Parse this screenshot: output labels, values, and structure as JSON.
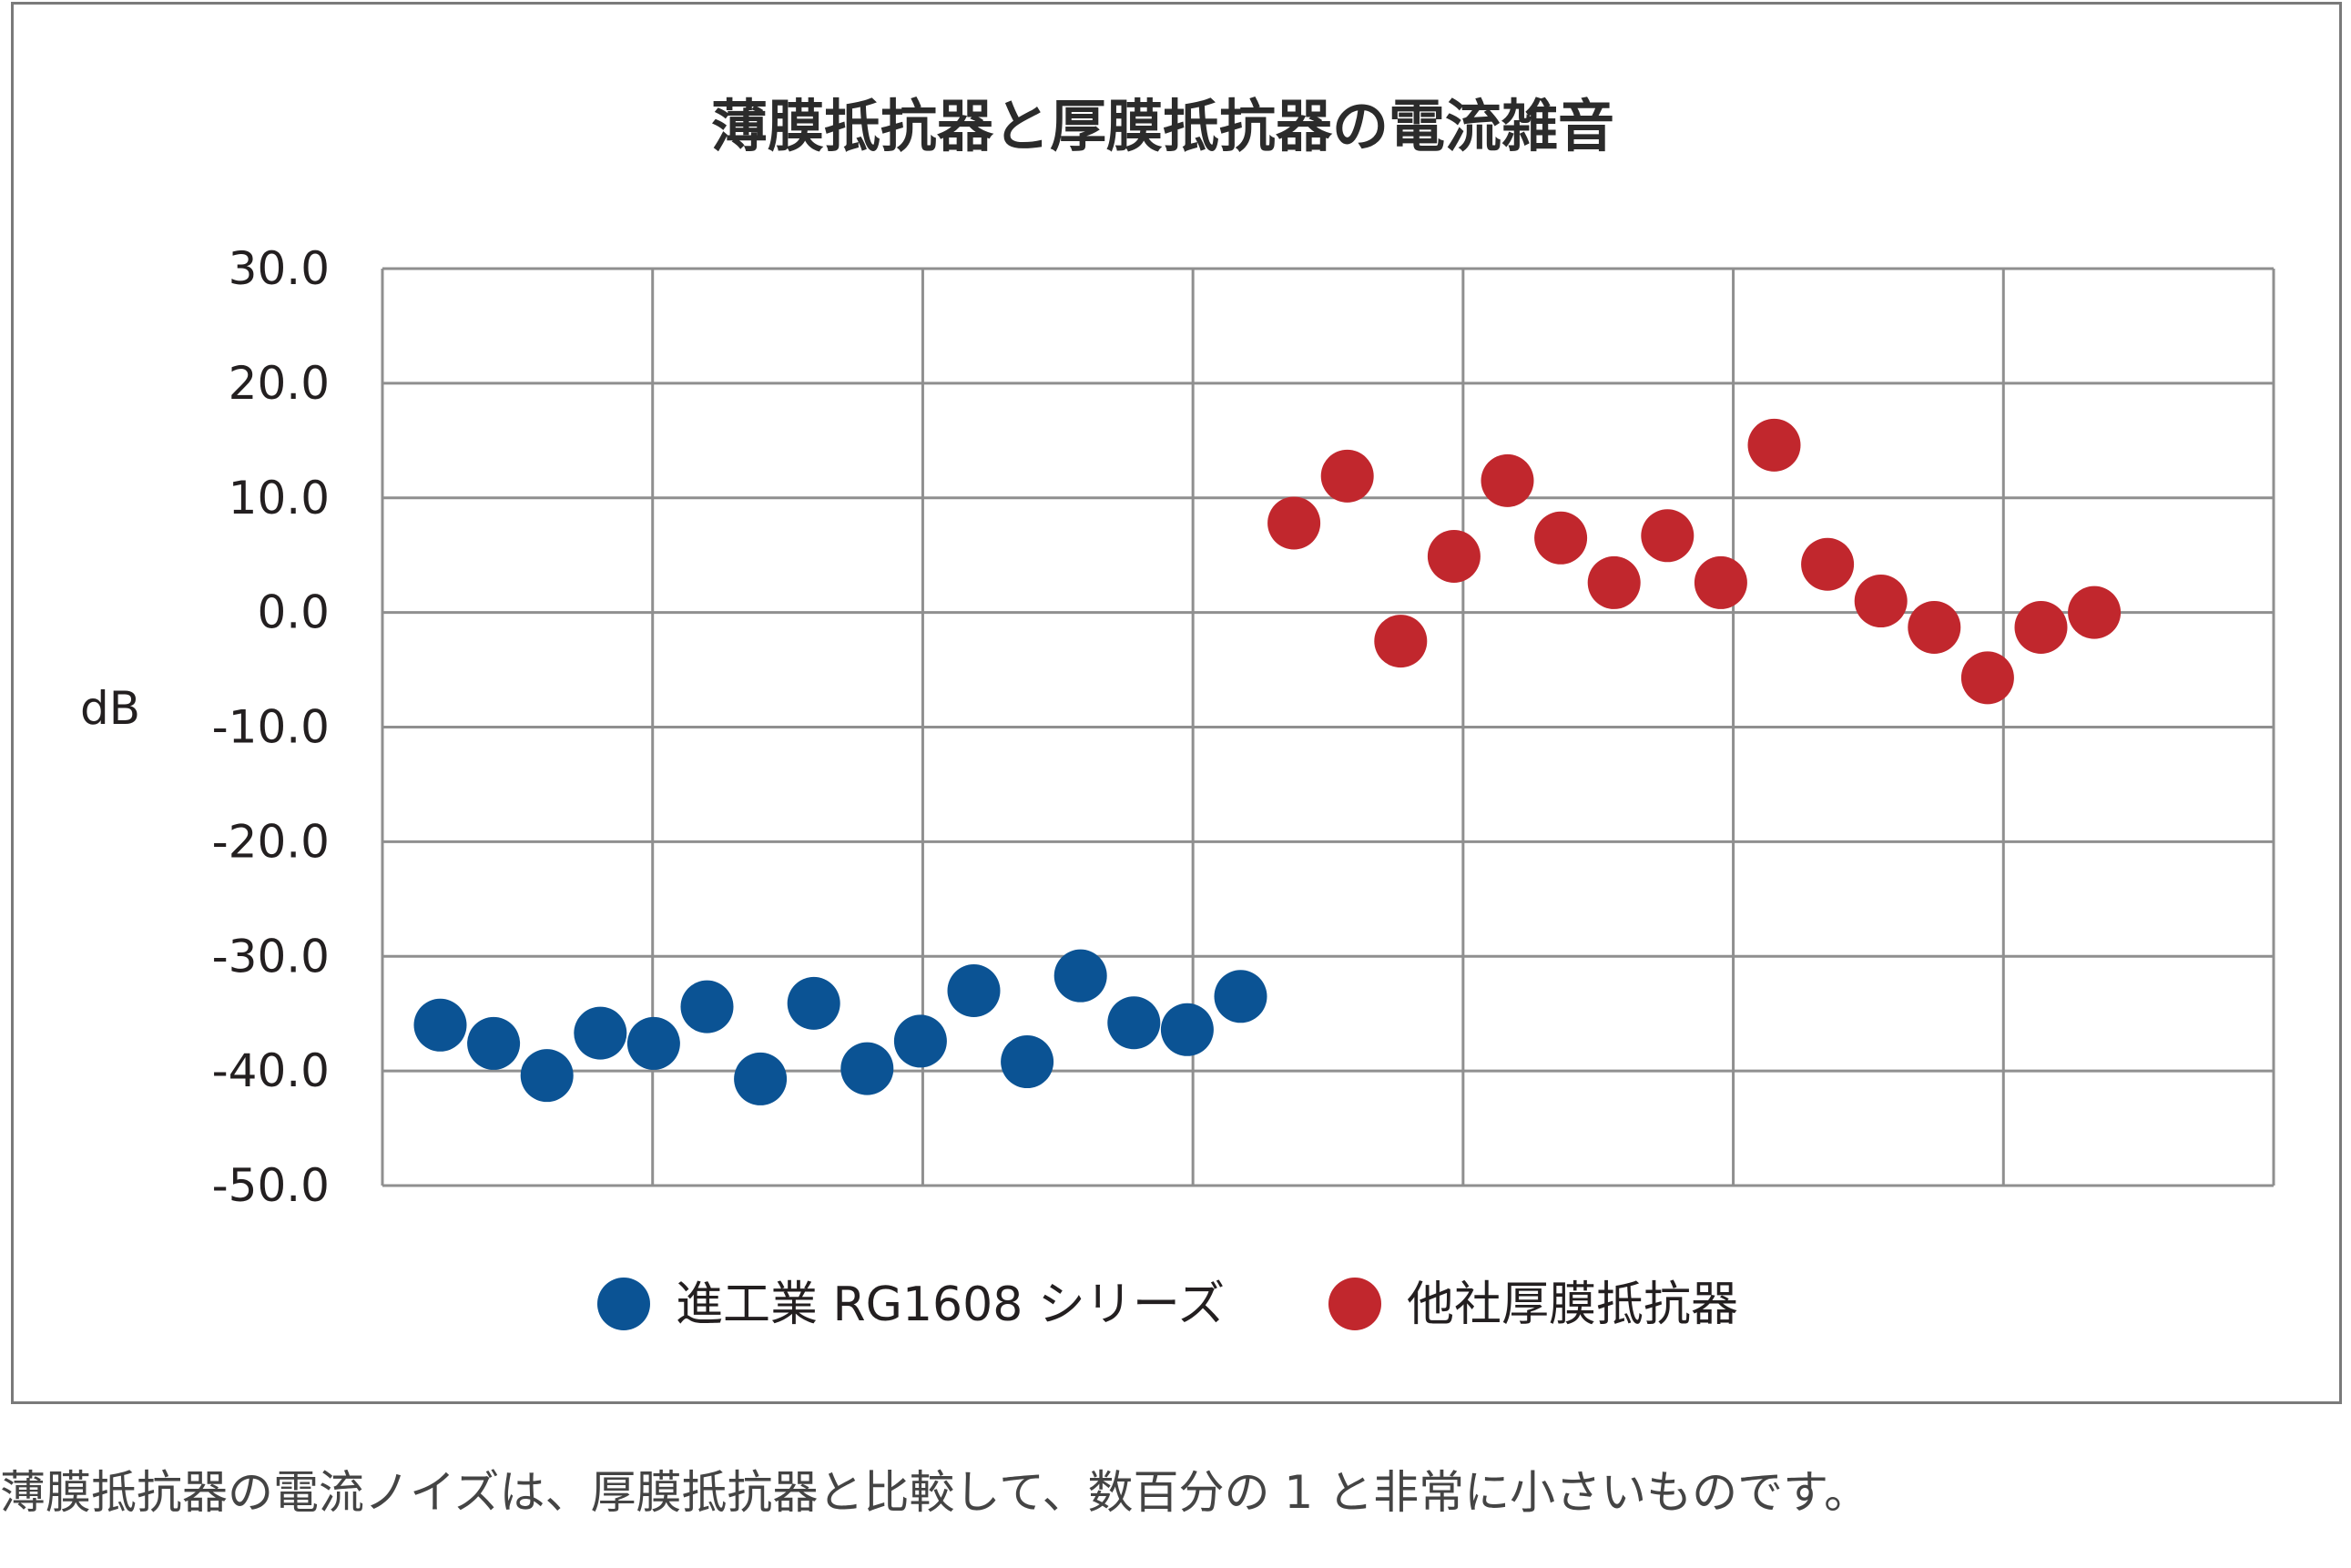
{
  "chart_data": {
    "type": "scatter",
    "title": "薄膜抵抗器と厚膜抵抗器の電流雑音",
    "ylabel": "dB",
    "xlabel": "",
    "ylim": [
      -50.0,
      30.0
    ],
    "yticks": [
      "30.0",
      "20.0",
      "10.0",
      "0.0",
      "-10.0",
      "-20.0",
      "-30.0",
      "-40.0",
      "-50.0"
    ],
    "x_gridlines": 7,
    "grid": true,
    "legend_position": "bottom",
    "series": [
      {
        "name": "進工業 RG1608 シリーズ",
        "color": "#0b5394",
        "x": [
          1,
          2,
          3,
          4,
          5,
          6,
          7,
          8,
          9,
          10,
          11,
          12,
          13,
          14,
          15,
          16
        ],
        "y": [
          -36.0,
          -37.6,
          -40.4,
          -36.7,
          -37.6,
          -34.4,
          -40.7,
          -34.1,
          -39.8,
          -37.4,
          -33.0,
          -39.2,
          -31.7,
          -35.8,
          -36.4,
          -33.5
        ]
      },
      {
        "name": "他社厚膜抵抗器",
        "color": "#c1272d",
        "x": [
          17,
          18,
          19,
          20,
          21,
          22,
          23,
          24,
          25,
          26,
          27,
          28,
          29,
          30,
          31,
          32
        ],
        "y": [
          7.8,
          11.9,
          -2.5,
          4.9,
          11.5,
          6.5,
          2.6,
          6.7,
          2.6,
          14.6,
          4.2,
          1.0,
          -1.3,
          -5.7,
          -1.3,
          0.0
        ]
      }
    ]
  },
  "caption": "薄膜抵抗器の電流ノイズは、厚膜抵抗器と比較して、数百分の 1 と非常に小さいものです。"
}
